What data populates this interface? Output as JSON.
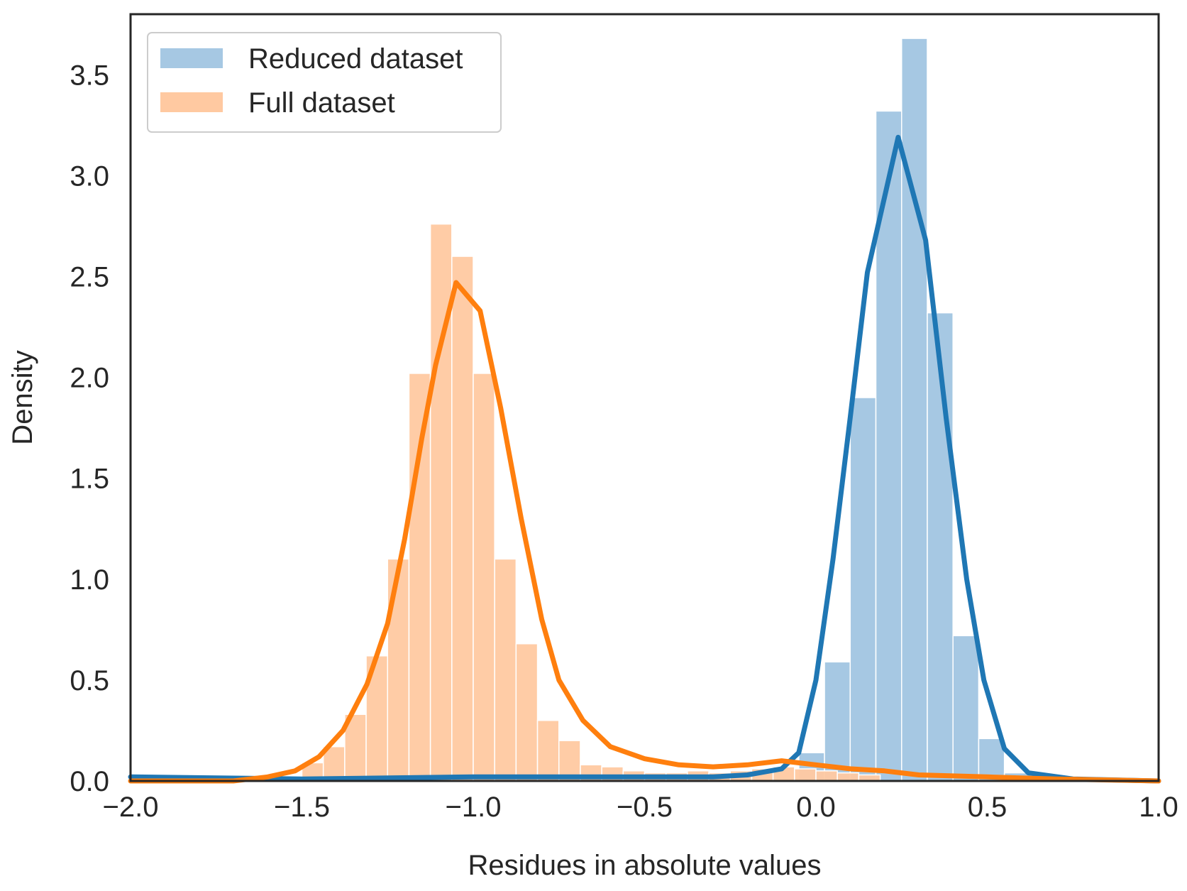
{
  "chart_data": {
    "type": "bar",
    "title": "",
    "xlabel": "Residues in absolute values",
    "ylabel": "Density",
    "xlim": [
      -2.0,
      1.0
    ],
    "ylim": [
      0.0,
      3.8
    ],
    "grid": false,
    "legend_position": "top-left",
    "xticks": [
      -2.0,
      -1.5,
      -1.0,
      -0.5,
      0.0,
      0.5,
      1.0
    ],
    "xtick_labels": [
      "−2.0",
      "−1.5",
      "−1.0",
      "−0.5",
      "0.0",
      "0.5",
      "1.0"
    ],
    "yticks": [
      0.0,
      0.5,
      1.0,
      1.5,
      2.0,
      2.5,
      3.0,
      3.5
    ],
    "ytick_labels": [
      "0.0",
      "0.5",
      "1.0",
      "1.5",
      "2.0",
      "2.5",
      "3.0",
      "3.5"
    ],
    "series": [
      {
        "name": "Reduced dataset",
        "hist_color": "#a6c8e3",
        "line_color": "#1f77b4",
        "bin_width": 0.075,
        "bins": [
          {
            "x0": -0.05,
            "value": 0.14
          },
          {
            "x0": 0.025,
            "value": 0.59
          },
          {
            "x0": 0.1,
            "value": 1.9
          },
          {
            "x0": 0.175,
            "value": 3.32
          },
          {
            "x0": 0.25,
            "value": 3.68
          },
          {
            "x0": 0.325,
            "value": 2.32
          },
          {
            "x0": 0.4,
            "value": 0.72
          },
          {
            "x0": 0.475,
            "value": 0.21
          },
          {
            "x0": 0.55,
            "value": 0.04
          }
        ],
        "kde": [
          [
            -2.0,
            0.02
          ],
          [
            -1.5,
            0.01
          ],
          [
            -1.0,
            0.02
          ],
          [
            -0.5,
            0.02
          ],
          [
            -0.3,
            0.02
          ],
          [
            -0.2,
            0.03
          ],
          [
            -0.1,
            0.06
          ],
          [
            -0.05,
            0.14
          ],
          [
            0.0,
            0.5
          ],
          [
            0.05,
            1.1
          ],
          [
            0.1,
            1.8
          ],
          [
            0.15,
            2.52
          ],
          [
            0.24,
            3.19
          ],
          [
            0.32,
            2.68
          ],
          [
            0.38,
            1.8
          ],
          [
            0.44,
            1.0
          ],
          [
            0.49,
            0.5
          ],
          [
            0.55,
            0.16
          ],
          [
            0.62,
            0.04
          ],
          [
            0.75,
            0.01
          ],
          [
            1.0,
            0.0
          ]
        ]
      },
      {
        "name": "Full dataset",
        "hist_color": "#ffc9a1",
        "line_color": "#ff7f0e",
        "bin_width": 0.0625,
        "bins": [
          {
            "x0": -1.5625,
            "value": 0.02
          },
          {
            "x0": -1.5,
            "value": 0.09
          },
          {
            "x0": -1.4375,
            "value": 0.17
          },
          {
            "x0": -1.375,
            "value": 0.33
          },
          {
            "x0": -1.3125,
            "value": 0.62
          },
          {
            "x0": -1.25,
            "value": 1.1
          },
          {
            "x0": -1.1875,
            "value": 2.02
          },
          {
            "x0": -1.125,
            "value": 2.76
          },
          {
            "x0": -1.0625,
            "value": 2.6
          },
          {
            "x0": -1.0,
            "value": 2.02
          },
          {
            "x0": -0.9375,
            "value": 1.1
          },
          {
            "x0": -0.875,
            "value": 0.68
          },
          {
            "x0": -0.8125,
            "value": 0.3
          },
          {
            "x0": -0.75,
            "value": 0.2
          },
          {
            "x0": -0.6875,
            "value": 0.08
          },
          {
            "x0": -0.625,
            "value": 0.07
          },
          {
            "x0": -0.5625,
            "value": 0.05
          },
          {
            "x0": -0.5,
            "value": 0.04
          },
          {
            "x0": -0.4375,
            "value": 0.04
          },
          {
            "x0": -0.375,
            "value": 0.05
          },
          {
            "x0": -0.3125,
            "value": 0.04
          },
          {
            "x0": -0.25,
            "value": 0.05
          },
          {
            "x0": -0.1875,
            "value": 0.06
          },
          {
            "x0": -0.125,
            "value": 0.07
          },
          {
            "x0": -0.0625,
            "value": 0.06
          },
          {
            "x0": 0.0,
            "value": 0.05
          },
          {
            "x0": 0.0625,
            "value": 0.04
          },
          {
            "x0": 0.125,
            "value": 0.03
          }
        ],
        "kde": [
          [
            -2.0,
            0.0
          ],
          [
            -1.7,
            0.0
          ],
          [
            -1.6,
            0.02
          ],
          [
            -1.52,
            0.05
          ],
          [
            -1.45,
            0.12
          ],
          [
            -1.38,
            0.25
          ],
          [
            -1.31,
            0.48
          ],
          [
            -1.25,
            0.78
          ],
          [
            -1.2,
            1.2
          ],
          [
            -1.15,
            1.7
          ],
          [
            -1.11,
            2.06
          ],
          [
            -1.05,
            2.47
          ],
          [
            -0.98,
            2.33
          ],
          [
            -0.92,
            1.85
          ],
          [
            -0.86,
            1.3
          ],
          [
            -0.8,
            0.8
          ],
          [
            -0.75,
            0.5
          ],
          [
            -0.68,
            0.3
          ],
          [
            -0.6,
            0.17
          ],
          [
            -0.5,
            0.11
          ],
          [
            -0.4,
            0.08
          ],
          [
            -0.3,
            0.07
          ],
          [
            -0.2,
            0.08
          ],
          [
            -0.1,
            0.1
          ],
          [
            0.0,
            0.08
          ],
          [
            0.1,
            0.06
          ],
          [
            0.2,
            0.05
          ],
          [
            0.3,
            0.03
          ],
          [
            0.5,
            0.02
          ],
          [
            0.7,
            0.01
          ],
          [
            1.0,
            0.0
          ]
        ]
      }
    ]
  }
}
